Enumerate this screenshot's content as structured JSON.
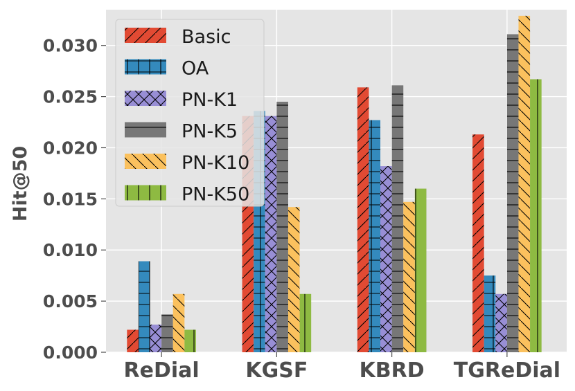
{
  "chart_data": {
    "type": "bar",
    "title": "",
    "xlabel": "",
    "ylabel": "Hit@50",
    "ylim": [
      0,
      0.0335
    ],
    "yticks": [
      0.0,
      0.005,
      0.01,
      0.015,
      0.02,
      0.025,
      0.03
    ],
    "ytick_labels": [
      "0.000",
      "0.005",
      "0.010",
      "0.015",
      "0.020",
      "0.025",
      "0.030"
    ],
    "grid": true,
    "legend_position": "top-left",
    "categories": [
      "ReDial",
      "KGSF",
      "KBRD",
      "TGReDial"
    ],
    "series": [
      {
        "name": "Basic",
        "color": "#E24A33",
        "hatch": "/",
        "values": [
          0.0022,
          0.0231,
          0.0259,
          0.0213
        ]
      },
      {
        "name": "OA",
        "color": "#348ABD",
        "hatch": "+",
        "values": [
          0.0089,
          0.0236,
          0.0227,
          0.0075
        ]
      },
      {
        "name": "PN-K1",
        "color": "#988ED5",
        "hatch": "x",
        "values": [
          0.0027,
          0.0231,
          0.0182,
          0.0057
        ]
      },
      {
        "name": "PN-K5",
        "color": "#777777",
        "hatch": "-",
        "values": [
          0.0037,
          0.0245,
          0.0261,
          0.0311
        ]
      },
      {
        "name": "PN-K10",
        "color": "#FBC15E",
        "hatch": "\\",
        "values": [
          0.0057,
          0.0142,
          0.0147,
          0.0329
        ]
      },
      {
        "name": "PN-K50",
        "color": "#8EBA42",
        "hatch": "|",
        "values": [
          0.0022,
          0.0057,
          0.016,
          0.0267
        ]
      }
    ]
  }
}
